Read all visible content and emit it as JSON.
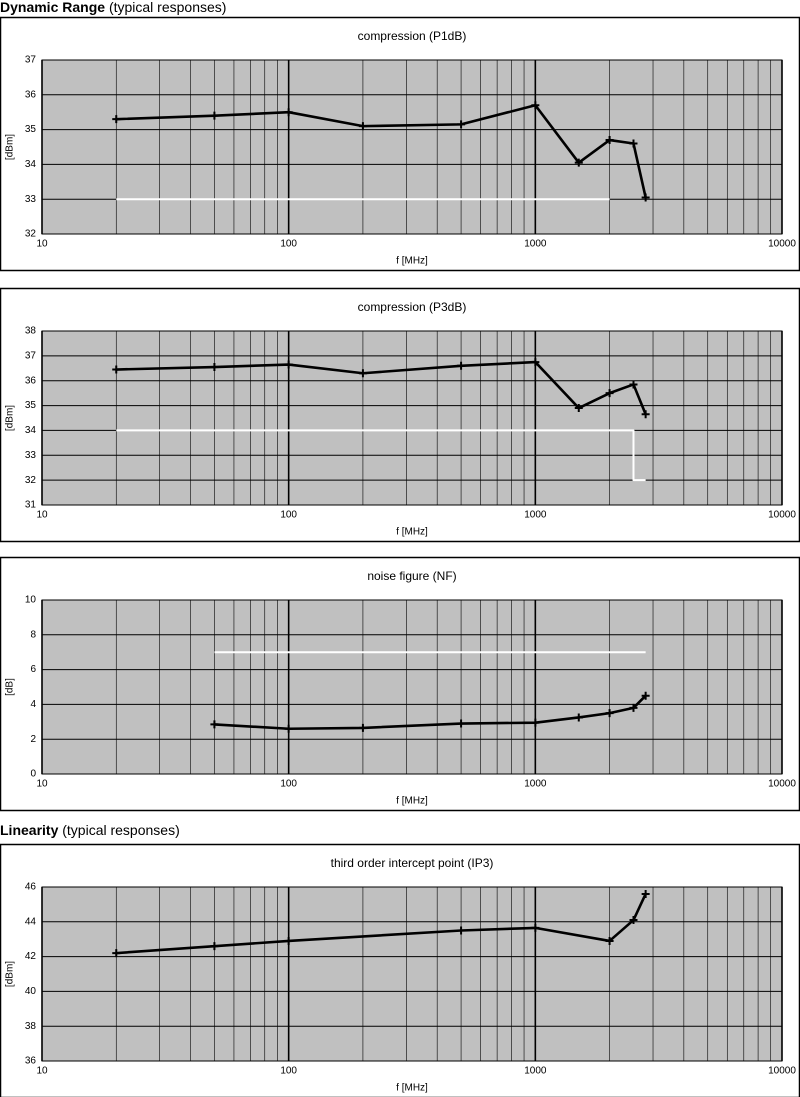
{
  "sections": [
    {
      "title": "Dynamic Range",
      "subtitle": "(typical responses)"
    },
    {
      "title": "Linearity",
      "subtitle": "(typical responses)"
    }
  ],
  "chart_data": [
    {
      "type": "line",
      "title": "compression (P1dB)",
      "xlabel": "f [MHz]",
      "ylabel": "[dBm]",
      "xscale": "log",
      "grid": true,
      "minor_grid": true,
      "xlim": [
        10,
        10000
      ],
      "xticks": [
        10,
        100,
        1000,
        10000
      ],
      "ylim": [
        32,
        37
      ],
      "yticks": [
        32,
        33,
        34,
        35,
        36,
        37
      ],
      "series": [
        {
          "color": "#000000",
          "markers": true,
          "x": [
            20,
            50,
            100,
            200,
            500,
            1000,
            1500,
            2000,
            2500,
            2800
          ],
          "values": [
            35.3,
            35.4,
            35.5,
            35.1,
            35.15,
            35.7,
            34.05,
            34.7,
            34.6,
            33.05
          ]
        },
        {
          "color": "#ffffff",
          "markers": false,
          "x": [
            20,
            2000
          ],
          "values": [
            33,
            33
          ]
        }
      ]
    },
    {
      "type": "line",
      "title": "compression (P3dB)",
      "xlabel": "f [MHz]",
      "ylabel": "[dBm]",
      "xscale": "log",
      "grid": true,
      "minor_grid": true,
      "xlim": [
        10,
        10000
      ],
      "xticks": [
        10,
        100,
        1000,
        10000
      ],
      "ylim": [
        31,
        38
      ],
      "yticks": [
        31,
        32,
        33,
        34,
        35,
        36,
        37,
        38
      ],
      "series": [
        {
          "color": "#000000",
          "markers": true,
          "x": [
            20,
            50,
            100,
            200,
            500,
            1000,
            1500,
            2000,
            2500,
            2800
          ],
          "values": [
            36.45,
            36.55,
            36.65,
            36.3,
            36.6,
            36.75,
            34.9,
            35.5,
            35.85,
            34.65
          ]
        },
        {
          "color": "#ffffff",
          "markers": false,
          "x": [
            20,
            2500,
            2500,
            2800
          ],
          "values": [
            34,
            34,
            32,
            32
          ]
        }
      ]
    },
    {
      "type": "line",
      "title": "noise figure (NF)",
      "xlabel": "f [MHz]",
      "ylabel": "[dB]",
      "xscale": "log",
      "grid": true,
      "minor_grid": true,
      "xlim": [
        10,
        10000
      ],
      "xticks": [
        10,
        100,
        1000,
        10000
      ],
      "ylim": [
        0,
        10
      ],
      "yticks": [
        0,
        2,
        4,
        6,
        8,
        10
      ],
      "series": [
        {
          "color": "#000000",
          "markers": true,
          "x": [
            50,
            100,
            200,
            500,
            1000,
            1500,
            2000,
            2500,
            2800
          ],
          "values": [
            2.85,
            2.6,
            2.65,
            2.9,
            2.95,
            3.25,
            3.5,
            3.8,
            4.5
          ]
        },
        {
          "color": "#ffffff",
          "markers": false,
          "x": [
            50,
            2800
          ],
          "values": [
            7,
            7
          ]
        }
      ]
    },
    {
      "type": "line",
      "title": "third order intercept point (IP3)",
      "xlabel": "f [MHz]",
      "ylabel": "[dBm]",
      "xscale": "log",
      "grid": true,
      "minor_grid": true,
      "xlim": [
        10,
        10000
      ],
      "xticks": [
        10,
        100,
        1000,
        10000
      ],
      "ylim": [
        36,
        46
      ],
      "yticks": [
        36,
        38,
        40,
        42,
        44,
        46
      ],
      "series": [
        {
          "color": "#000000",
          "markers": true,
          "x": [
            20,
            50,
            100,
            500,
            1000,
            2000,
            2500,
            2800
          ],
          "values": [
            42.2,
            42.6,
            42.9,
            43.5,
            43.65,
            42.9,
            44.1,
            45.6
          ]
        }
      ]
    }
  ]
}
